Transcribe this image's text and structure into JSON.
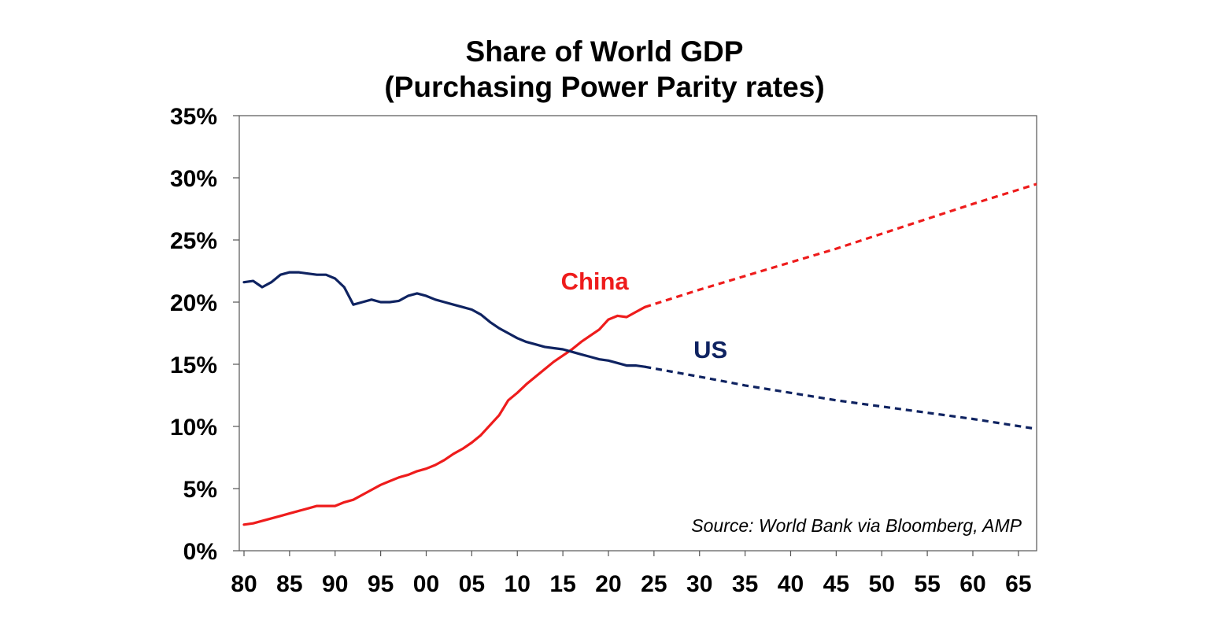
{
  "chart_data": {
    "type": "line",
    "title": [
      "Share of World GDP",
      "(Purchasing Power Parity rates)"
    ],
    "xlabel": "",
    "ylabel": "",
    "xlim": [
      1980,
      2067
    ],
    "ylim": [
      0,
      35
    ],
    "y_ticks": [
      {
        "value": 0,
        "label": "0%"
      },
      {
        "value": 5,
        "label": "5%"
      },
      {
        "value": 10,
        "label": "10%"
      },
      {
        "value": 15,
        "label": "15%"
      },
      {
        "value": 20,
        "label": "20%"
      },
      {
        "value": 25,
        "label": "25%"
      },
      {
        "value": 30,
        "label": "30%"
      },
      {
        "value": 35,
        "label": "35%"
      }
    ],
    "x_ticks": [
      {
        "value": 1980,
        "label": "80"
      },
      {
        "value": 1985,
        "label": "85"
      },
      {
        "value": 1990,
        "label": "90"
      },
      {
        "value": 1995,
        "label": "95"
      },
      {
        "value": 2000,
        "label": "00"
      },
      {
        "value": 2005,
        "label": "05"
      },
      {
        "value": 2010,
        "label": "10"
      },
      {
        "value": 2015,
        "label": "15"
      },
      {
        "value": 2020,
        "label": "20"
      },
      {
        "value": 2025,
        "label": "25"
      },
      {
        "value": 2030,
        "label": "30"
      },
      {
        "value": 2035,
        "label": "35"
      },
      {
        "value": 2040,
        "label": "40"
      },
      {
        "value": 2045,
        "label": "45"
      },
      {
        "value": 2050,
        "label": "50"
      },
      {
        "value": 2055,
        "label": "55"
      },
      {
        "value": 2060,
        "label": "60"
      },
      {
        "value": 2065,
        "label": "65"
      }
    ],
    "series": [
      {
        "name": "China",
        "color": "#ee1c1c",
        "label_anchor": {
          "x": 2018.5,
          "y": 21.0
        },
        "actual": {
          "x": [
            1980,
            1981,
            1982,
            1983,
            1984,
            1985,
            1986,
            1987,
            1988,
            1989,
            1990,
            1991,
            1992,
            1993,
            1994,
            1995,
            1996,
            1997,
            1998,
            1999,
            2000,
            2001,
            2002,
            2003,
            2004,
            2005,
            2006,
            2007,
            2008,
            2009,
            2010,
            2011,
            2012,
            2013,
            2014,
            2015,
            2016,
            2017,
            2018,
            2019,
            2020,
            2021,
            2022,
            2023,
            2024
          ],
          "y": [
            2.1,
            2.2,
            2.4,
            2.6,
            2.8,
            3.0,
            3.2,
            3.4,
            3.6,
            3.6,
            3.6,
            3.9,
            4.1,
            4.5,
            4.9,
            5.3,
            5.6,
            5.9,
            6.1,
            6.4,
            6.6,
            6.9,
            7.3,
            7.8,
            8.2,
            8.7,
            9.3,
            10.1,
            10.9,
            12.1,
            12.7,
            13.4,
            14.0,
            14.6,
            15.2,
            15.7,
            16.2,
            16.8,
            17.3,
            17.8,
            18.6,
            18.9,
            18.8,
            19.2,
            19.6
          ]
        },
        "projection": {
          "x": [
            2024,
            2030,
            2035,
            2040,
            2045,
            2050,
            2055,
            2060,
            2067
          ],
          "y": [
            19.6,
            21.0,
            22.1,
            23.2,
            24.3,
            25.5,
            26.7,
            27.9,
            29.5
          ]
        }
      },
      {
        "name": "US",
        "color": "#0f2361",
        "label_anchor": {
          "x": 2031.2,
          "y": 15.5
        },
        "actual": {
          "x": [
            1980,
            1981,
            1982,
            1983,
            1984,
            1985,
            1986,
            1987,
            1988,
            1989,
            1990,
            1991,
            1992,
            1993,
            1994,
            1995,
            1996,
            1997,
            1998,
            1999,
            2000,
            2001,
            2002,
            2003,
            2004,
            2005,
            2006,
            2007,
            2008,
            2009,
            2010,
            2011,
            2012,
            2013,
            2014,
            2015,
            2016,
            2017,
            2018,
            2019,
            2020,
            2021,
            2022,
            2023,
            2024
          ],
          "y": [
            21.6,
            21.7,
            21.2,
            21.6,
            22.2,
            22.4,
            22.4,
            22.3,
            22.2,
            22.2,
            21.9,
            21.2,
            19.8,
            20.0,
            20.2,
            20.0,
            20.0,
            20.1,
            20.5,
            20.7,
            20.5,
            20.2,
            20.0,
            19.8,
            19.6,
            19.4,
            19.0,
            18.4,
            17.9,
            17.5,
            17.1,
            16.8,
            16.6,
            16.4,
            16.3,
            16.2,
            16.0,
            15.8,
            15.6,
            15.4,
            15.3,
            15.1,
            14.9,
            14.9,
            14.8
          ]
        },
        "projection": {
          "x": [
            2024,
            2030,
            2035,
            2040,
            2045,
            2050,
            2055,
            2060,
            2067
          ],
          "y": [
            14.8,
            14.0,
            13.3,
            12.7,
            12.1,
            11.6,
            11.1,
            10.6,
            9.8
          ]
        }
      }
    ],
    "annotations": [
      "Source: World Bank via Bloomberg, AMP"
    ]
  }
}
